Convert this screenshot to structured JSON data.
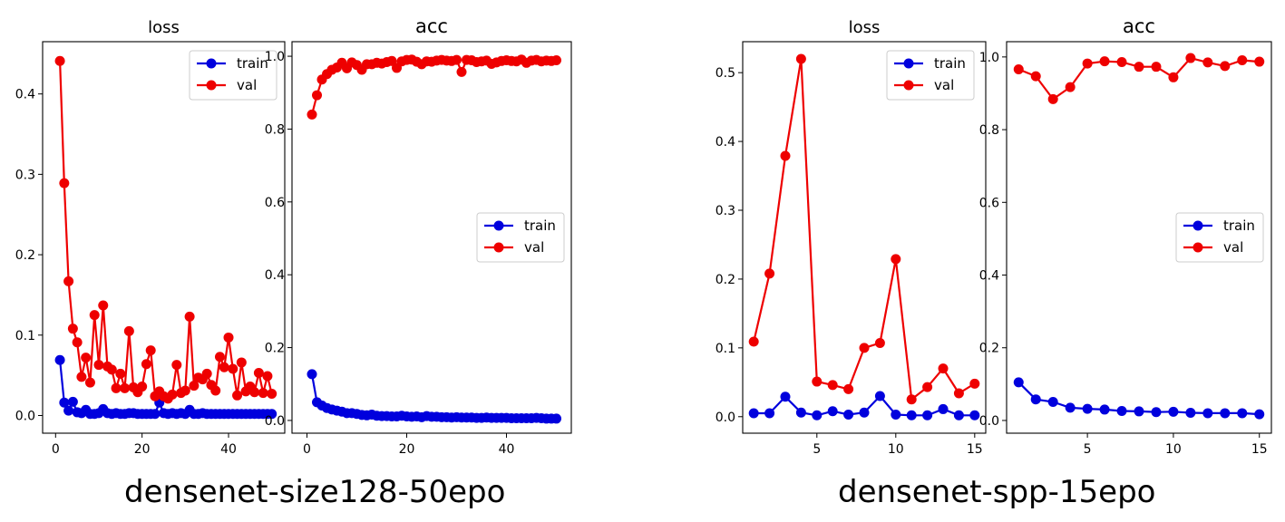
{
  "chart_data": [
    {
      "type": "line",
      "title": "loss",
      "x": [
        1,
        2,
        3,
        4,
        5,
        6,
        7,
        8,
        9,
        10,
        11,
        12,
        13,
        14,
        15,
        16,
        17,
        18,
        19,
        20,
        21,
        22,
        23,
        24,
        25,
        26,
        27,
        28,
        29,
        30,
        31,
        32,
        33,
        34,
        35,
        36,
        37,
        38,
        39,
        40,
        41,
        42,
        43,
        44,
        45,
        46,
        47,
        48,
        49,
        50
      ],
      "xlim": [
        -3,
        53
      ],
      "ylim": [
        -0.022,
        0.465
      ],
      "xticks": [
        0,
        20,
        40
      ],
      "yticks": [
        0.0,
        0.1,
        0.2,
        0.3,
        0.4
      ],
      "ytick_labels": [
        "0.0",
        "0.1",
        "0.2",
        "0.3",
        "0.4"
      ],
      "legend": "top-right",
      "series": [
        {
          "name": "train",
          "color": "#0000dd",
          "values": [
            0.069,
            0.016,
            0.006,
            0.017,
            0.004,
            0.003,
            0.007,
            0.002,
            0.002,
            0.003,
            0.008,
            0.003,
            0.002,
            0.003,
            0.002,
            0.002,
            0.003,
            0.003,
            0.002,
            0.002,
            0.002,
            0.002,
            0.002,
            0.016,
            0.003,
            0.002,
            0.003,
            0.002,
            0.003,
            0.002,
            0.007,
            0.002,
            0.002,
            0.003,
            0.002,
            0.002,
            0.002,
            0.002,
            0.002,
            0.002,
            0.002,
            0.002,
            0.002,
            0.002,
            0.002,
            0.002,
            0.002,
            0.002,
            0.002,
            0.002
          ]
        },
        {
          "name": "val",
          "color": "#ee0000",
          "values": [
            0.441,
            0.289,
            0.167,
            0.108,
            0.091,
            0.048,
            0.072,
            0.041,
            0.125,
            0.063,
            0.137,
            0.061,
            0.057,
            0.034,
            0.052,
            0.034,
            0.105,
            0.035,
            0.029,
            0.036,
            0.064,
            0.081,
            0.024,
            0.03,
            0.024,
            0.021,
            0.026,
            0.063,
            0.028,
            0.031,
            0.123,
            0.037,
            0.047,
            0.045,
            0.052,
            0.038,
            0.031,
            0.073,
            0.06,
            0.097,
            0.058,
            0.025,
            0.066,
            0.03,
            0.036,
            0.029,
            0.053,
            0.028,
            0.049,
            0.027
          ]
        }
      ]
    },
    {
      "type": "line",
      "title": "acc",
      "x": [
        1,
        2,
        3,
        4,
        5,
        6,
        7,
        8,
        9,
        10,
        11,
        12,
        13,
        14,
        15,
        16,
        17,
        18,
        19,
        20,
        21,
        22,
        23,
        24,
        25,
        26,
        27,
        28,
        29,
        30,
        31,
        32,
        33,
        34,
        35,
        36,
        37,
        38,
        39,
        40,
        41,
        42,
        43,
        44,
        45,
        46,
        47,
        48,
        49,
        50
      ],
      "xlim": [
        -3,
        53
      ],
      "ylim": [
        -0.035,
        1.04
      ],
      "xticks": [
        0,
        20,
        40
      ],
      "yticks": [
        0.0,
        0.2,
        0.4,
        0.6,
        0.8,
        1.0
      ],
      "ytick_labels": [
        "0.0",
        "0.2",
        "0.4",
        "0.6",
        "0.8",
        "1.0"
      ],
      "legend": "center-right",
      "series": [
        {
          "name": "train",
          "color": "#0000dd",
          "values": [
            0.127,
            0.05,
            0.041,
            0.034,
            0.03,
            0.027,
            0.024,
            0.02,
            0.02,
            0.018,
            0.015,
            0.014,
            0.016,
            0.013,
            0.012,
            0.012,
            0.011,
            0.011,
            0.013,
            0.011,
            0.01,
            0.011,
            0.009,
            0.012,
            0.01,
            0.01,
            0.009,
            0.009,
            0.008,
            0.009,
            0.008,
            0.008,
            0.008,
            0.007,
            0.007,
            0.008,
            0.007,
            0.007,
            0.007,
            0.007,
            0.006,
            0.006,
            0.006,
            0.006,
            0.006,
            0.007,
            0.006,
            0.005,
            0.005,
            0.005
          ]
        },
        {
          "name": "val",
          "color": "#ee0000",
          "values": [
            0.84,
            0.893,
            0.936,
            0.951,
            0.963,
            0.969,
            0.982,
            0.967,
            0.983,
            0.976,
            0.963,
            0.978,
            0.978,
            0.982,
            0.98,
            0.984,
            0.987,
            0.968,
            0.986,
            0.99,
            0.991,
            0.985,
            0.978,
            0.986,
            0.985,
            0.988,
            0.99,
            0.988,
            0.987,
            0.99,
            0.957,
            0.99,
            0.989,
            0.984,
            0.986,
            0.988,
            0.979,
            0.983,
            0.987,
            0.989,
            0.987,
            0.986,
            0.991,
            0.982,
            0.988,
            0.99,
            0.986,
            0.988,
            0.987,
            0.989
          ]
        }
      ]
    },
    {
      "type": "line",
      "title": "loss",
      "x": [
        1,
        2,
        3,
        4,
        5,
        6,
        7,
        8,
        9,
        10,
        11,
        12,
        13,
        14,
        15
      ],
      "xlim": [
        0.3,
        15.7
      ],
      "ylim": [
        -0.024,
        0.545
      ],
      "xticks": [
        5,
        10,
        15
      ],
      "yticks": [
        0.0,
        0.1,
        0.2,
        0.3,
        0.4,
        0.5
      ],
      "ytick_labels": [
        "0.0",
        "0.1",
        "0.2",
        "0.3",
        "0.4",
        "0.5"
      ],
      "legend": "top-right",
      "series": [
        {
          "name": "train",
          "color": "#0000dd",
          "values": [
            0.005,
            0.005,
            0.029,
            0.006,
            0.002,
            0.008,
            0.003,
            0.006,
            0.03,
            0.003,
            0.002,
            0.002,
            0.011,
            0.002,
            0.002
          ]
        },
        {
          "name": "val",
          "color": "#ee0000",
          "values": [
            0.109,
            0.208,
            0.379,
            0.52,
            0.051,
            0.046,
            0.04,
            0.1,
            0.107,
            0.229,
            0.025,
            0.043,
            0.07,
            0.034,
            0.048
          ]
        }
      ]
    },
    {
      "type": "line",
      "title": "acc",
      "x": [
        1,
        2,
        3,
        4,
        5,
        6,
        7,
        8,
        9,
        10,
        11,
        12,
        13,
        14,
        15
      ],
      "xlim": [
        0.3,
        15.7
      ],
      "ylim": [
        -0.035,
        1.042
      ],
      "xticks": [
        5,
        10,
        15
      ],
      "yticks": [
        0.0,
        0.2,
        0.4,
        0.6,
        0.8,
        1.0
      ],
      "ytick_labels": [
        "0.0",
        "0.2",
        "0.4",
        "0.6",
        "0.8",
        "1.0"
      ],
      "legend": "center-right",
      "series": [
        {
          "name": "train",
          "color": "#0000dd",
          "values": [
            0.105,
            0.058,
            0.051,
            0.035,
            0.032,
            0.03,
            0.026,
            0.025,
            0.023,
            0.024,
            0.021,
            0.02,
            0.02,
            0.02,
            0.017
          ]
        },
        {
          "name": "val",
          "color": "#ee0000",
          "values": [
            0.966,
            0.947,
            0.884,
            0.917,
            0.982,
            0.988,
            0.986,
            0.973,
            0.973,
            0.944,
            0.997,
            0.985,
            0.975,
            0.991,
            0.987
          ]
        }
      ]
    }
  ],
  "captions": {
    "left": "densenet-size128-50epo",
    "right": "densenet-spp-15epo"
  }
}
